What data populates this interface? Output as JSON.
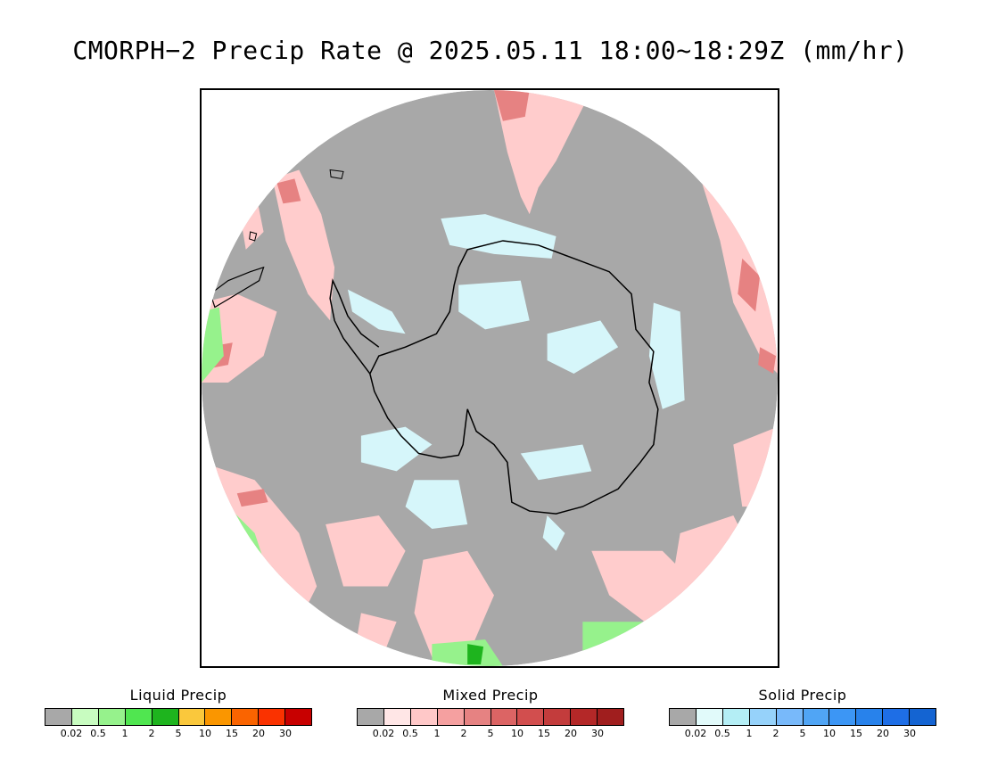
{
  "title": "CMORPH−2 Precip Rate @ 2025.05.11 18:00~18:29Z (mm/hr)",
  "map": {
    "projection": "south-polar-stereographic",
    "background_color": "#a8a8a8",
    "coastline_color": "#000000",
    "region": "Antarctica / Southern Ocean"
  },
  "legends": [
    {
      "name": "liquid",
      "title": "Liquid Precip",
      "colors": [
        "#a8a8a8",
        "#c8fcc0",
        "#96f28c",
        "#50e650",
        "#1eb41e",
        "#fac83c",
        "#fa9600",
        "#fa6400",
        "#fa3200",
        "#c80000"
      ],
      "ticks": [
        "0.02",
        "0.5",
        "1",
        "2",
        "5",
        "10",
        "15",
        "20",
        "30"
      ]
    },
    {
      "name": "mixed",
      "title": "Mixed Precip",
      "colors": [
        "#a8a8a8",
        "#ffe6e6",
        "#ffc8c8",
        "#f5a0a0",
        "#e68282",
        "#dc6464",
        "#d24e4e",
        "#c33c3c",
        "#b42828",
        "#a01e1e"
      ],
      "ticks": [
        "0.02",
        "0.5",
        "1",
        "2",
        "5",
        "10",
        "15",
        "20",
        "30"
      ]
    },
    {
      "name": "solid",
      "title": "Solid Precip",
      "colors": [
        "#a8a8a8",
        "#e1fafa",
        "#b4eef5",
        "#96d2fa",
        "#78b9fa",
        "#50a5f5",
        "#3c96f5",
        "#2882eb",
        "#1e6ee6",
        "#1464d2"
      ],
      "ticks": [
        "0.02",
        "0.5",
        "1",
        "2",
        "5",
        "10",
        "15",
        "20",
        "30"
      ]
    }
  ]
}
